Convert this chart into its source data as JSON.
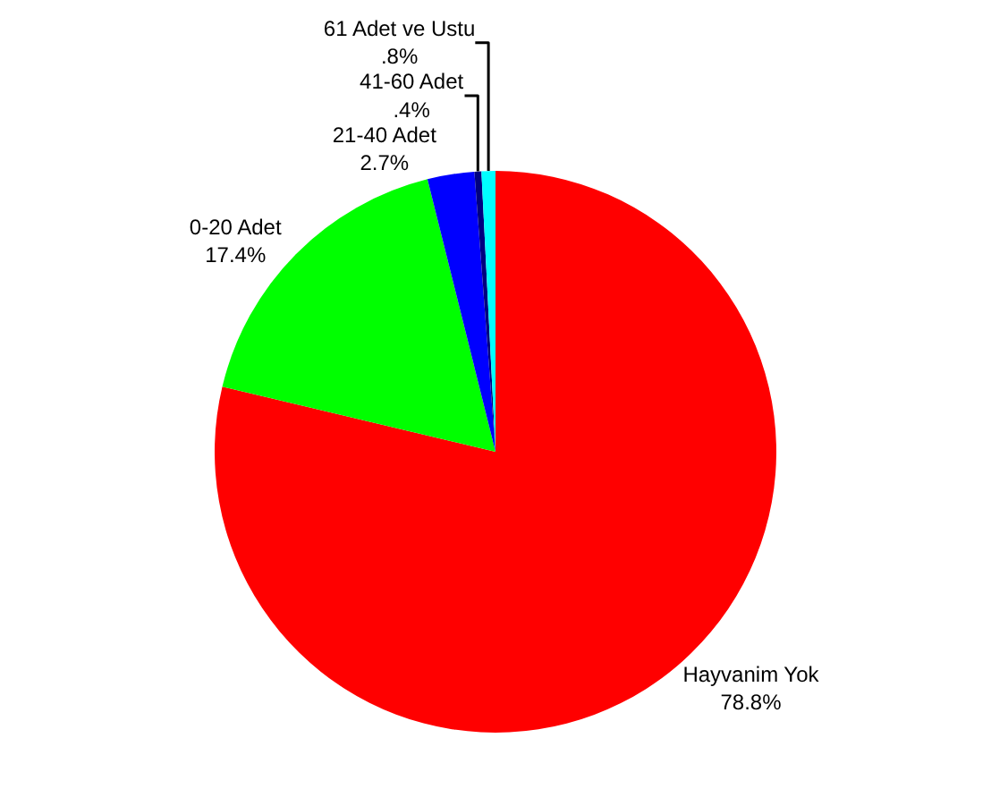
{
  "chart_data": {
    "type": "pie",
    "categories": [
      "Hayvanim Yok",
      "0-20 Adet",
      "21-40 Adet",
      "41-60 Adet",
      "61 Adet ve Ustu"
    ],
    "values": [
      78.8,
      17.4,
      2.7,
      0.4,
      0.8
    ],
    "value_labels": [
      "78.8%",
      "17.4%",
      "2.7%",
      ".4%",
      ".8%"
    ],
    "colors": [
      "#ff0000",
      "#00ff00",
      "#0000ff",
      "#000080",
      "#00ffff"
    ],
    "legend": false
  }
}
